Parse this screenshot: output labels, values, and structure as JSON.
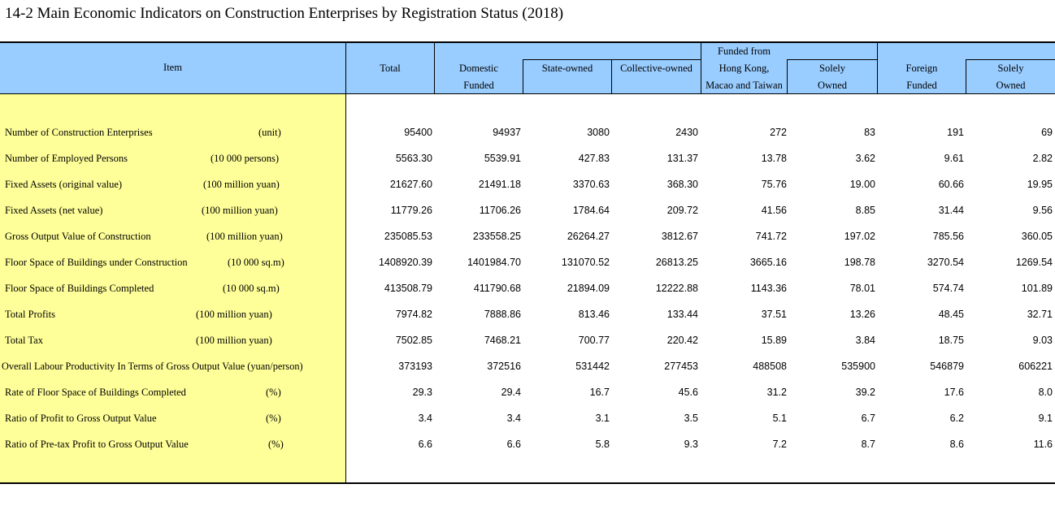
{
  "title": "14-2  Main Economic Indicators on Construction Enterprises by Registration Status (2018)",
  "header": {
    "item": "Item",
    "total": "Total",
    "domestic_1": "Domestic",
    "domestic_2": "Funded",
    "state_owned": "State-owned",
    "collective_owned": "Collective-owned",
    "hmt_top": "Funded from",
    "hmt_1": "Hong Kong,",
    "hmt_2": "Macao and Taiwan",
    "hmt_solely_1": "Solely",
    "hmt_solely_2": "Owned",
    "foreign_1": "Foreign",
    "foreign_2": "Funded",
    "foreign_solely_1": "Solely",
    "foreign_solely_2": "Owned"
  },
  "rows": [
    {
      "label": "Number of Construction Enterprises",
      "unit": "(unit)",
      "values": [
        "95400",
        "94937",
        "3080",
        "2430",
        "272",
        "83",
        "191",
        "69"
      ]
    },
    {
      "label": "Number of Employed Persons",
      "unit": "(10 000 persons)",
      "values": [
        "5563.30",
        "5539.91",
        "427.83",
        "131.37",
        "13.78",
        "3.62",
        "9.61",
        "2.82"
      ]
    },
    {
      "label": "Fixed Assets (original value)",
      "unit": "(100 million yuan)",
      "values": [
        "21627.60",
        "21491.18",
        "3370.63",
        "368.30",
        "75.76",
        "19.00",
        "60.66",
        "19.95"
      ]
    },
    {
      "label": "Fixed Assets (net value)",
      "unit": "(100 million yuan)",
      "values": [
        "11779.26",
        "11706.26",
        "1784.64",
        "209.72",
        "41.56",
        "8.85",
        "31.44",
        "9.56"
      ]
    },
    {
      "label": "Gross Output Value of Construction",
      "unit": "(100 million yuan)",
      "values": [
        "235085.53",
        "233558.25",
        "26264.27",
        "3812.67",
        "741.72",
        "197.02",
        "785.56",
        "360.05"
      ]
    },
    {
      "label": "Floor Space of Buildings under Construction",
      "unit": "(10 000 sq.m)",
      "values": [
        "1408920.39",
        "1401984.70",
        "131070.52",
        "26813.25",
        "3665.16",
        "198.78",
        "3270.54",
        "1269.54"
      ]
    },
    {
      "label": "Floor Space of Buildings Completed",
      "unit": "(10 000 sq.m)",
      "values": [
        "413508.79",
        "411790.68",
        "21894.09",
        "12222.88",
        "1143.36",
        "78.01",
        "574.74",
        "101.89"
      ]
    },
    {
      "label": "Total Profits",
      "unit": "(100 million yuan)",
      "values": [
        "7974.82",
        "7888.86",
        "813.46",
        "133.44",
        "37.51",
        "13.26",
        "48.45",
        "32.71"
      ]
    },
    {
      "label": "Total Tax",
      "unit": "(100 million yuan)",
      "values": [
        "7502.85",
        "7468.21",
        "700.77",
        "220.42",
        "15.89",
        "3.84",
        "18.75",
        "9.03"
      ]
    },
    {
      "label": "Overall Labour Productivity In Terms of Gross Output Value (yuan/person)",
      "unit": "",
      "values": [
        "373193",
        "372516",
        "531442",
        "277453",
        "488508",
        "535900",
        "546879",
        "606221"
      ]
    },
    {
      "label": "Rate of Floor Space of Buildings Completed",
      "unit": "(%)",
      "values": [
        "29.3",
        "29.4",
        "16.7",
        "45.6",
        "31.2",
        "39.2",
        "17.6",
        "8.0"
      ]
    },
    {
      "label": "Ratio of Profit to Gross Output Value",
      "unit": "(%)",
      "values": [
        "3.4",
        "3.4",
        "3.1",
        "3.5",
        "5.1",
        "6.7",
        "6.2",
        "9.1"
      ]
    },
    {
      "label": "Ratio of Pre-tax Profit to Gross Output Value",
      "unit": "(%)",
      "values": [
        "6.6",
        "6.6",
        "5.8",
        "9.3",
        "7.2",
        "8.7",
        "8.6",
        "11.6"
      ]
    }
  ],
  "colors": {
    "header_bg": "#99ccff",
    "item_column_bg": "#ffff99"
  }
}
